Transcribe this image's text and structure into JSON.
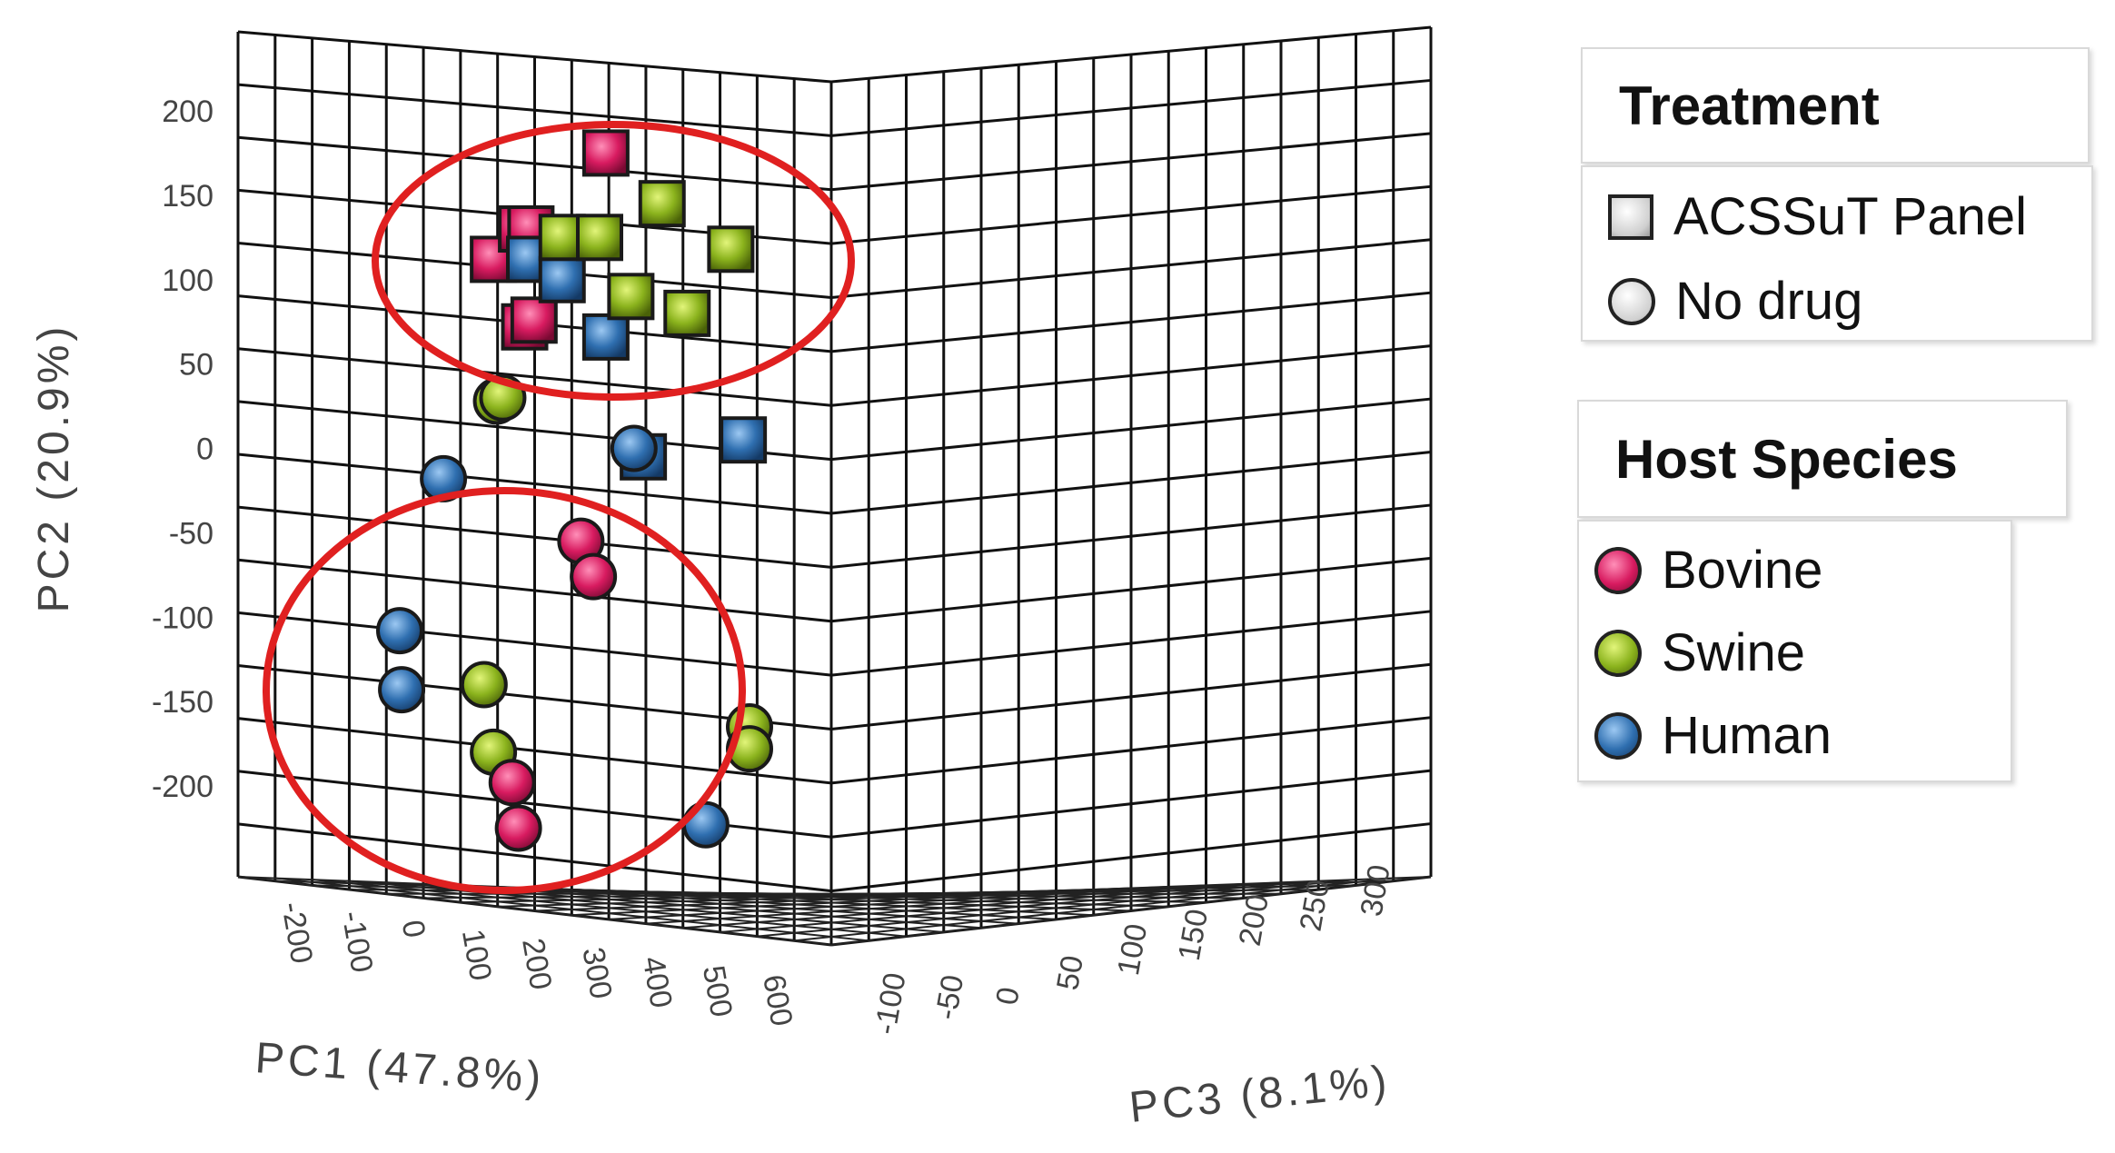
{
  "chart_data": {
    "type": "scatter",
    "projection": "3d",
    "axes": {
      "x": {
        "label": "PC1 (47.8%)",
        "ticks": [
          "-200",
          "-100",
          "0",
          "100",
          "200",
          "300",
          "400",
          "500",
          "600"
        ],
        "range": [
          -200,
          600
        ]
      },
      "y": {
        "label": "PC2 (20.9%)",
        "ticks": [
          "200",
          "150",
          "100",
          "50",
          "0",
          "-50",
          "-100",
          "-150",
          "-200"
        ],
        "range": [
          -250,
          250
        ]
      },
      "z": {
        "label": "PC3 (8.1%)",
        "ticks": [
          "-100",
          "-50",
          "0",
          "50",
          "100",
          "150",
          "200",
          "250",
          "300"
        ],
        "range": [
          -100,
          300
        ]
      }
    },
    "grid": true,
    "colors": {
      "Bovine": "#d81b60",
      "Swine": "#8bb31d",
      "Human": "#2f6fb0",
      "ellipse": "#e02020"
    },
    "points_note_units": "x = horizontal screen position in PC1 axis units, y = PC2",
    "points": [
      {
        "x": 290,
        "y": 175,
        "species": "Bovine",
        "treatment": "ACSSuT Panel"
      },
      {
        "x": 110,
        "y": 112,
        "species": "Bovine",
        "treatment": "ACSSuT Panel"
      },
      {
        "x": 155,
        "y": 130,
        "species": "Bovine",
        "treatment": "ACSSuT Panel"
      },
      {
        "x": 170,
        "y": 130,
        "species": "Bovine",
        "treatment": "ACSSuT Panel"
      },
      {
        "x": 160,
        "y": 72,
        "species": "Bovine",
        "treatment": "ACSSuT Panel"
      },
      {
        "x": 175,
        "y": 76,
        "species": "Bovine",
        "treatment": "ACSSuT Panel"
      },
      {
        "x": 168,
        "y": 112,
        "species": "Human",
        "treatment": "ACSSuT Panel"
      },
      {
        "x": 220,
        "y": 100,
        "species": "Human",
        "treatment": "ACSSuT Panel"
      },
      {
        "x": 290,
        "y": 66,
        "species": "Human",
        "treatment": "ACSSuT Panel"
      },
      {
        "x": 350,
        "y": -5,
        "species": "Human",
        "treatment": "ACSSuT Panel"
      },
      {
        "x": 510,
        "y": 5,
        "species": "Human",
        "treatment": "ACSSuT Panel"
      },
      {
        "x": 220,
        "y": 125,
        "species": "Swine",
        "treatment": "ACSSuT Panel"
      },
      {
        "x": 280,
        "y": 125,
        "species": "Swine",
        "treatment": "ACSSuT Panel"
      },
      {
        "x": 380,
        "y": 145,
        "species": "Swine",
        "treatment": "ACSSuT Panel"
      },
      {
        "x": 490,
        "y": 118,
        "species": "Swine",
        "treatment": "ACSSuT Panel"
      },
      {
        "x": 330,
        "y": 90,
        "species": "Swine",
        "treatment": "ACSSuT Panel"
      },
      {
        "x": 420,
        "y": 80,
        "species": "Swine",
        "treatment": "ACSSuT Panel"
      },
      {
        "x": 115,
        "y": 28,
        "species": "Swine",
        "treatment": "No drug"
      },
      {
        "x": 125,
        "y": 30,
        "species": "Swine",
        "treatment": "No drug"
      },
      {
        "x": 335,
        "y": 0,
        "species": "Human",
        "treatment": "No drug"
      },
      {
        "x": 30,
        "y": -18,
        "species": "Human",
        "treatment": "No drug"
      },
      {
        "x": 250,
        "y": -55,
        "species": "Bovine",
        "treatment": "No drug"
      },
      {
        "x": 270,
        "y": -76,
        "species": "Bovine",
        "treatment": "No drug"
      },
      {
        "x": -40,
        "y": -108,
        "species": "Human",
        "treatment": "No drug"
      },
      {
        "x": -37,
        "y": -143,
        "species": "Human",
        "treatment": "No drug"
      },
      {
        "x": 95,
        "y": -140,
        "species": "Swine",
        "treatment": "No drug"
      },
      {
        "x": 110,
        "y": -180,
        "species": "Swine",
        "treatment": "No drug"
      },
      {
        "x": 140,
        "y": -198,
        "species": "Bovine",
        "treatment": "No drug"
      },
      {
        "x": 150,
        "y": -225,
        "species": "Bovine",
        "treatment": "No drug"
      },
      {
        "x": 450,
        "y": -223,
        "species": "Human",
        "treatment": "No drug"
      },
      {
        "x": 520,
        "y": -165,
        "species": "Swine",
        "treatment": "No drug"
      },
      {
        "x": 520,
        "y": -178,
        "species": "Swine",
        "treatment": "No drug"
      }
    ],
    "legend": {
      "treatment_title": "Treatment",
      "treatment_items": [
        "ACSSuT Panel",
        "No drug"
      ],
      "species_title": "Host Species",
      "species_items": [
        "Bovine",
        "Swine",
        "Human"
      ],
      "placement": "right"
    }
  }
}
